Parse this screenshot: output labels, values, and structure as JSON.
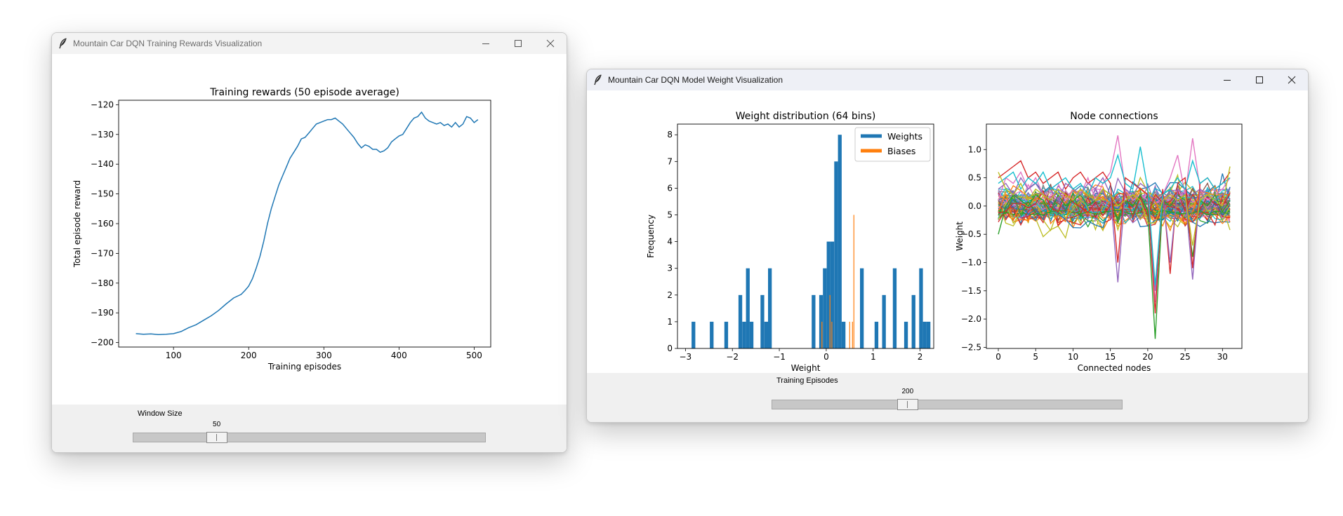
{
  "windows": [
    {
      "title": "Mountain Car DQN Training Rewards Visualization",
      "slider": {
        "label": "Window Size",
        "value": "50",
        "fraction": 0.22
      }
    },
    {
      "title": "Mountain Car DQN Model Weight Visualization",
      "slider": {
        "label": "Training Episodes",
        "value": "200",
        "fraction": 0.38
      }
    }
  ],
  "icons": [
    "feather-icon",
    "minimize-icon",
    "maximize-icon",
    "close-icon"
  ],
  "chart_data": [
    {
      "type": "line",
      "title": "Training rewards (50 episode average)",
      "xlabel": "Training episodes",
      "ylabel": "Total episode reward",
      "xlim": [
        27,
        522
      ],
      "ylim": [
        -201.5,
        -118.5
      ],
      "xticks": [
        100,
        200,
        300,
        400,
        500
      ],
      "yticks": [
        -120,
        -130,
        -140,
        -150,
        -160,
        -170,
        -180,
        -190,
        -200
      ],
      "series": [
        {
          "color": "#1f77b4",
          "points": [
            [
              50,
              -197
            ],
            [
              60,
              -197.2
            ],
            [
              70,
              -197.1
            ],
            [
              80,
              -197.3
            ],
            [
              90,
              -197.2
            ],
            [
              100,
              -197
            ],
            [
              110,
              -196.3
            ],
            [
              120,
              -195
            ],
            [
              130,
              -194
            ],
            [
              140,
              -192.5
            ],
            [
              150,
              -191
            ],
            [
              160,
              -189.2
            ],
            [
              170,
              -187
            ],
            [
              180,
              -185
            ],
            [
              190,
              -183.8
            ],
            [
              195,
              -182.5
            ],
            [
              200,
              -181
            ],
            [
              205,
              -178.5
            ],
            [
              210,
              -175
            ],
            [
              215,
              -171
            ],
            [
              220,
              -166
            ],
            [
              225,
              -160
            ],
            [
              230,
              -155
            ],
            [
              235,
              -151
            ],
            [
              240,
              -147
            ],
            [
              245,
              -144
            ],
            [
              250,
              -141
            ],
            [
              255,
              -138
            ],
            [
              260,
              -136
            ],
            [
              265,
              -134
            ],
            [
              270,
              -131.5
            ],
            [
              275,
              -131
            ],
            [
              280,
              -129.5
            ],
            [
              285,
              -128
            ],
            [
              290,
              -126.5
            ],
            [
              295,
              -126
            ],
            [
              300,
              -125.5
            ],
            [
              305,
              -125
            ],
            [
              310,
              -125
            ],
            [
              315,
              -124.5
            ],
            [
              320,
              -125.5
            ],
            [
              325,
              -126.5
            ],
            [
              330,
              -128
            ],
            [
              335,
              -129.5
            ],
            [
              340,
              -131
            ],
            [
              345,
              -133
            ],
            [
              350,
              -134.5
            ],
            [
              355,
              -133.5
            ],
            [
              360,
              -134
            ],
            [
              365,
              -135
            ],
            [
              370,
              -135
            ],
            [
              375,
              -136
            ],
            [
              380,
              -135.5
            ],
            [
              385,
              -134.5
            ],
            [
              390,
              -132.5
            ],
            [
              395,
              -131.5
            ],
            [
              400,
              -130.5
            ],
            [
              405,
              -130
            ],
            [
              410,
              -128
            ],
            [
              415,
              -126
            ],
            [
              420,
              -124.5
            ],
            [
              425,
              -124
            ],
            [
              430,
              -122.5
            ],
            [
              435,
              -124.5
            ],
            [
              440,
              -125.5
            ],
            [
              445,
              -126
            ],
            [
              450,
              -126.5
            ],
            [
              455,
              -126
            ],
            [
              460,
              -127
            ],
            [
              465,
              -126.5
            ],
            [
              470,
              -127.5
            ],
            [
              475,
              -126
            ],
            [
              480,
              -127.5
            ],
            [
              485,
              -126.5
            ],
            [
              490,
              -124
            ],
            [
              495,
              -124.5
            ],
            [
              500,
              -126
            ],
            [
              505,
              -125
            ]
          ]
        }
      ]
    },
    {
      "type": "bar",
      "title": "Weight distribution (64 bins)",
      "xlabel": "Weight",
      "ylabel": "Frequency",
      "xlim": [
        -3.17,
        2.29
      ],
      "ylim": [
        0,
        8.4
      ],
      "xticks": [
        -3,
        -2,
        -1,
        0,
        1,
        2
      ],
      "yticks": [
        0,
        1,
        2,
        3,
        4,
        5,
        6,
        7,
        8
      ],
      "legend": {
        "placement": "top-right",
        "entries": [
          "Weights",
          "Biases"
        ]
      },
      "series": [
        {
          "name": "Weights",
          "color": "#1f77b4",
          "bin_width": 0.079,
          "bins": [
            [
              -2.87,
              1
            ],
            [
              -2.48,
              1
            ],
            [
              -2.17,
              1
            ],
            [
              -1.87,
              2
            ],
            [
              -1.79,
              1
            ],
            [
              -1.71,
              3
            ],
            [
              -1.63,
              1
            ],
            [
              -1.4,
              2
            ],
            [
              -1.32,
              1
            ],
            [
              -1.24,
              3
            ],
            [
              -0.31,
              2
            ],
            [
              -0.15,
              2
            ],
            [
              -0.07,
              3
            ],
            [
              0.01,
              4
            ],
            [
              0.09,
              4
            ],
            [
              0.17,
              7
            ],
            [
              0.25,
              8
            ],
            [
              0.33,
              1
            ],
            [
              0.72,
              3
            ],
            [
              1.03,
              1
            ],
            [
              1.19,
              2
            ],
            [
              1.42,
              3
            ],
            [
              1.66,
              1
            ],
            [
              1.82,
              2
            ],
            [
              1.98,
              3
            ],
            [
              2.06,
              1
            ],
            [
              2.14,
              1
            ]
          ]
        },
        {
          "name": "Biases",
          "color": "#ff7f0e",
          "bin_width": 0.018,
          "bins": [
            [
              -0.1,
              1
            ],
            [
              0.07,
              2
            ],
            [
              0.11,
              1
            ],
            [
              0.49,
              1
            ],
            [
              0.55,
              1
            ],
            [
              0.58,
              5
            ]
          ]
        }
      ]
    },
    {
      "type": "line",
      "title": "Node connections",
      "xlabel": "Connected nodes",
      "ylabel": "Weight",
      "xlim": [
        -1.6,
        32.6
      ],
      "ylim": [
        -2.52,
        1.45
      ],
      "xticks": [
        0,
        5,
        10,
        15,
        20,
        25,
        30
      ],
      "yticks": [
        1.0,
        0.5,
        0.0,
        -0.5,
        -1.0,
        -1.5,
        -2.0,
        -2.5
      ],
      "n_points": 32,
      "n_series": 64,
      "extremes": [
        {
          "color": "#e377c2",
          "values": [
            0.1,
            0.5,
            0.4,
            0.6,
            0.3,
            0.5,
            0.2,
            0.3,
            0.4,
            0.1,
            0.3,
            0.2,
            0.5,
            0.1,
            0.4,
            0.6,
            1.25,
            0.3,
            0.1,
            0.2,
            0.1,
            -1.7,
            0.2,
            0.5,
            0.9,
            0.2,
            1.2,
            0.3,
            0.1,
            0.2,
            0.3,
            0.5
          ]
        },
        {
          "color": "#2ca02c",
          "values": [
            -0.5,
            0.0,
            0.2,
            0.1,
            0.0,
            0.2,
            0.1,
            -0.1,
            0.2,
            0.0,
            0.1,
            0.2,
            0.0,
            0.1,
            0.3,
            0.2,
            -0.3,
            0.1,
            0.0,
            0.2,
            -0.1,
            -2.35,
            0.1,
            0.0,
            0.2,
            0.1,
            -0.9,
            0.1,
            0.0,
            0.2,
            -0.1,
            0.1
          ]
        },
        {
          "color": "#d62728",
          "values": [
            0.5,
            0.6,
            0.7,
            0.8,
            0.5,
            0.6,
            0.4,
            0.5,
            0.6,
            0.3,
            0.5,
            0.6,
            0.4,
            0.5,
            0.6,
            0.4,
            -1.0,
            0.5,
            0.4,
            0.3,
            0.2,
            -1.9,
            0.3,
            -1.2,
            0.4,
            0.5,
            -1.1,
            0.4,
            0.5,
            0.3,
            0.4,
            0.6
          ]
        },
        {
          "color": "#9467bd",
          "values": [
            0.3,
            0.4,
            0.2,
            0.5,
            0.3,
            0.4,
            0.2,
            0.3,
            0.1,
            0.4,
            0.3,
            0.2,
            0.4,
            0.3,
            0.5,
            0.2,
            -1.35,
            0.3,
            0.2,
            0.4,
            0.3,
            -1.5,
            0.2,
            -1.0,
            0.3,
            0.2,
            -1.3,
            0.3,
            0.2,
            0.1,
            0.2,
            0.3
          ]
        },
        {
          "color": "#17becf",
          "values": [
            0.4,
            0.5,
            0.6,
            0.3,
            0.5,
            0.4,
            0.6,
            0.3,
            0.4,
            0.5,
            0.3,
            0.4,
            0.2,
            0.5,
            0.4,
            0.5,
            0.9,
            0.4,
            0.3,
            1.05,
            0.3,
            -1.4,
            0.2,
            0.3,
            0.5,
            0.3,
            0.8,
            0.4,
            0.5,
            0.3,
            0.4,
            0.5
          ]
        },
        {
          "color": "#bcbd22",
          "values": [
            0.6,
            0.3,
            0.2,
            0.4,
            0.1,
            0.3,
            0.2,
            0.1,
            0.3,
            0.2,
            0.1,
            0.3,
            0.2,
            0.1,
            0.3,
            0.2,
            0.0,
            0.1,
            0.2,
            0.1,
            -0.3,
            -0.3,
            0.1,
            0.2,
            0.1,
            0.2,
            -0.7,
            0.1,
            0.2,
            0.1,
            0.0,
            0.7
          ]
        }
      ]
    }
  ]
}
